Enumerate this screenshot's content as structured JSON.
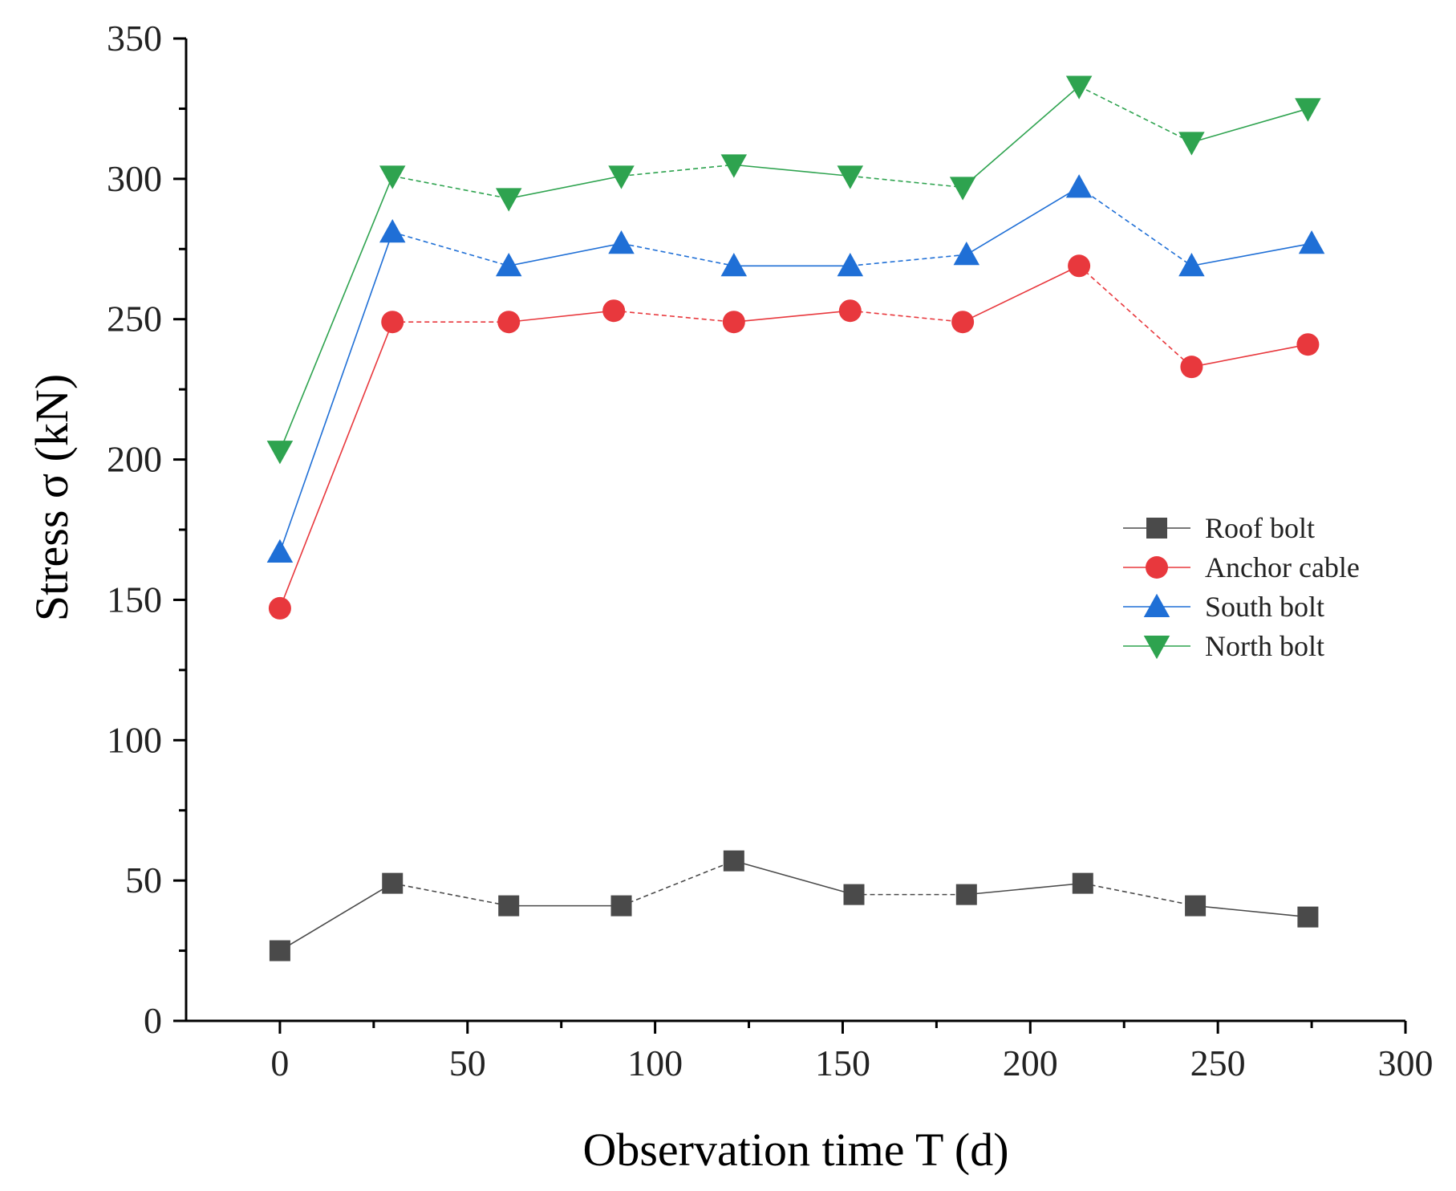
{
  "chart_data": {
    "type": "line",
    "title": "",
    "xlabel": "Observation time T (d)",
    "ylabel": "Stress σ (kN)",
    "xlim": [
      -25,
      300
    ],
    "ylim": [
      0,
      350
    ],
    "x_ticks": [
      0,
      50,
      100,
      150,
      200,
      250,
      300
    ],
    "y_ticks": [
      0,
      50,
      100,
      150,
      200,
      250,
      300,
      350
    ],
    "grid": false,
    "legend_position": "right-middle",
    "series": [
      {
        "name": "Roof bolt",
        "color": "#4a4a4a",
        "marker": "square",
        "x": [
          0,
          30,
          61,
          91,
          121,
          153,
          183,
          214,
          244,
          274
        ],
        "values": [
          25,
          49,
          41,
          41,
          57,
          45,
          45,
          49,
          41,
          37
        ]
      },
      {
        "name": "Anchor cable",
        "color": "#e8383d",
        "marker": "circle",
        "x": [
          0,
          30,
          61,
          89,
          121,
          152,
          182,
          213,
          243,
          274
        ],
        "values": [
          147,
          249,
          249,
          253,
          249,
          253,
          249,
          269,
          233,
          241
        ]
      },
      {
        "name": "South bolt",
        "color": "#1f6fd6",
        "marker": "triangle-up",
        "x": [
          0,
          30,
          61,
          91,
          121,
          152,
          183,
          213,
          243,
          275
        ],
        "values": [
          167,
          281,
          269,
          277,
          269,
          269,
          273,
          297,
          269,
          277
        ]
      },
      {
        "name": "North bolt",
        "color": "#2ea34f",
        "marker": "triangle-down",
        "x": [
          0,
          30,
          61,
          91,
          121,
          152,
          182,
          213,
          243,
          274
        ],
        "values": [
          203,
          301,
          293,
          301,
          305,
          301,
          297,
          333,
          313,
          325
        ]
      }
    ]
  }
}
